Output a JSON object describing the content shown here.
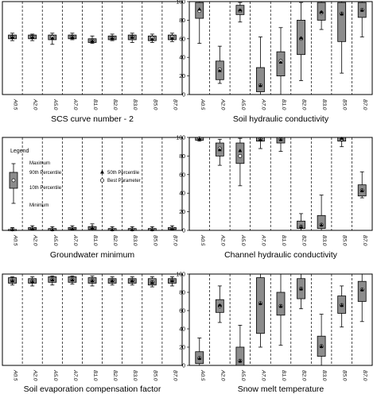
{
  "chart_data": [
    {
      "type": "box",
      "title": "SCS curve number - 2",
      "categories": [
        "A0.5",
        "A2.0",
        "A5.0",
        "A7.0",
        "B1.0",
        "B2.0",
        "B3.0",
        "B5.0",
        "B7.0"
      ],
      "ylim": [
        0,
        100
      ],
      "yticks": [],
      "grid": false,
      "series": [
        {
          "min": 58,
          "p10": 60,
          "p90": 64,
          "max": 66,
          "best": 62,
          "p50": 62
        },
        {
          "min": 58,
          "p10": 60,
          "p90": 64,
          "max": 65,
          "best": 62,
          "p50": 62
        },
        {
          "min": 54,
          "p10": 59,
          "p90": 64,
          "max": 66,
          "best": 62,
          "p50": 61
        },
        {
          "min": 59,
          "p10": 60,
          "p90": 64,
          "max": 66,
          "best": 62,
          "p50": 62
        },
        {
          "min": 55,
          "p10": 56,
          "p90": 60,
          "max": 63,
          "best": 58,
          "p50": 58
        },
        {
          "min": 58,
          "p10": 59,
          "p90": 63,
          "max": 65,
          "best": 61,
          "p50": 61
        },
        {
          "min": 56,
          "p10": 59,
          "p90": 64,
          "max": 66,
          "best": 62,
          "p50": 62
        },
        {
          "min": 56,
          "p10": 58,
          "p90": 63,
          "max": 65,
          "best": 61,
          "p50": 60
        },
        {
          "min": 57,
          "p10": 59,
          "p90": 64,
          "max": 66,
          "best": 62,
          "p50": 61
        }
      ]
    },
    {
      "type": "box",
      "title": "Soil hydraulic conductivity",
      "categories": [
        "A0.5",
        "A2.0",
        "A5.0",
        "A7.0",
        "B1.0",
        "B2.0",
        "B3.0",
        "B5.0",
        "B7.0"
      ],
      "ylim": [
        0,
        100
      ],
      "yticks": [
        "0",
        "20",
        "40",
        "60",
        "80",
        "100"
      ],
      "grid": false,
      "series": [
        {
          "min": 55,
          "p10": 82,
          "p90": 99,
          "max": 100,
          "best": 90,
          "p50": 92
        },
        {
          "min": 12,
          "p10": 16,
          "p90": 36,
          "max": 52,
          "best": 27,
          "p50": 26
        },
        {
          "min": 78,
          "p10": 86,
          "p90": 96,
          "max": 99,
          "best": 90,
          "p50": 91
        },
        {
          "min": 0,
          "p10": 3,
          "p90": 29,
          "max": 62,
          "best": 10,
          "p50": 10
        },
        {
          "min": 0,
          "p10": 20,
          "p90": 46,
          "max": 72,
          "best": 36,
          "p50": 35
        },
        {
          "min": 15,
          "p10": 43,
          "p90": 80,
          "max": 99,
          "best": 60,
          "p50": 61
        },
        {
          "min": 70,
          "p10": 80,
          "p90": 99,
          "max": 100,
          "best": 88,
          "p50": 89
        },
        {
          "min": 23,
          "p10": 57,
          "p90": 99,
          "max": 100,
          "best": 87,
          "p50": 87
        },
        {
          "min": 62,
          "p10": 83,
          "p90": 99,
          "max": 100,
          "best": 91,
          "p50": 91
        }
      ]
    },
    {
      "type": "box",
      "title": "Groundwater minimum",
      "categories": [
        "A0.5",
        "A2.0",
        "A5.0",
        "A7.0",
        "B1.0",
        "B2.0",
        "B3.0",
        "B5.0",
        "B7.0"
      ],
      "ylim": [
        0,
        100
      ],
      "yticks": [],
      "grid": false,
      "series": [
        {
          "min": 0,
          "p10": 0,
          "p90": 1,
          "max": 3,
          "best": 1,
          "p50": 1
        },
        {
          "min": 0,
          "p10": 1,
          "p90": 3,
          "max": 5,
          "best": 2,
          "p50": 2
        },
        {
          "min": 0,
          "p10": 0,
          "p90": 2,
          "max": 4,
          "best": 1,
          "p50": 1
        },
        {
          "min": 0,
          "p10": 1,
          "p90": 3,
          "max": 5,
          "best": 2,
          "p50": 2
        },
        {
          "min": 0,
          "p10": 1,
          "p90": 4,
          "max": 7,
          "best": 3,
          "p50": 3
        },
        {
          "min": 0,
          "p10": 0,
          "p90": 2,
          "max": 4,
          "best": 1,
          "p50": 1
        },
        {
          "min": 0,
          "p10": 0,
          "p90": 2,
          "max": 4,
          "best": 1,
          "p50": 1
        },
        {
          "min": 0,
          "p10": 0,
          "p90": 2,
          "max": 4,
          "best": 1,
          "p50": 1
        },
        {
          "min": 0,
          "p10": 1,
          "p90": 3,
          "max": 5,
          "best": 2,
          "p50": 2
        }
      ],
      "legend": {
        "title": "Legend",
        "items": [
          "Maximum",
          "90th Percentile",
          "10th Percentile",
          "Minimum",
          "50th Percentile",
          "Best Parameter"
        ]
      }
    },
    {
      "type": "box",
      "title": "Channel hydraulic conductivity",
      "categories": [
        "A0.5",
        "A2.0",
        "A5.0",
        "A7.0",
        "B1.0",
        "B2.0",
        "B3.0",
        "B5.0",
        "B7.0"
      ],
      "ylim": [
        0,
        100
      ],
      "yticks": [
        "0",
        "20",
        "40",
        "60",
        "80",
        "100"
      ],
      "grid": false,
      "series": [
        {
          "min": 96,
          "p10": 97,
          "p90": 100,
          "max": 100,
          "best": 99,
          "p50": 99
        },
        {
          "min": 70,
          "p10": 80,
          "p90": 94,
          "max": 98,
          "best": 88,
          "p50": 87
        },
        {
          "min": 48,
          "p10": 72,
          "p90": 94,
          "max": 99,
          "best": 80,
          "p50": 86
        },
        {
          "min": 88,
          "p10": 96,
          "p90": 100,
          "max": 100,
          "best": 98,
          "p50": 98
        },
        {
          "min": 85,
          "p10": 94,
          "p90": 100,
          "max": 100,
          "best": 98,
          "p50": 98
        },
        {
          "min": 0,
          "p10": 2,
          "p90": 10,
          "max": 18,
          "best": 4,
          "p50": 4
        },
        {
          "min": 0,
          "p10": 2,
          "p90": 16,
          "max": 38,
          "best": 6,
          "p50": 6
        },
        {
          "min": 90,
          "p10": 96,
          "p90": 100,
          "max": 100,
          "best": 98,
          "p50": 99
        },
        {
          "min": 35,
          "p10": 37,
          "p90": 49,
          "max": 63,
          "best": 43,
          "p50": 43
        }
      ]
    },
    {
      "type": "box",
      "title": "Soil evaporation compensation factor",
      "categories": [
        "A0.5",
        "A2.0",
        "A5.0",
        "A7.0",
        "B1.0",
        "B2.0",
        "B3.0",
        "B5.0",
        "B7.0"
      ],
      "ylim": [
        0,
        100
      ],
      "yticks": [],
      "grid": false,
      "series": [
        {
          "min": 88,
          "p10": 90,
          "p90": 96,
          "max": 97,
          "best": 93,
          "p50": 93
        },
        {
          "min": 87,
          "p10": 90,
          "p90": 95,
          "max": 97,
          "best": 92,
          "p50": 92
        },
        {
          "min": 88,
          "p10": 91,
          "p90": 97,
          "max": 98,
          "best": 94,
          "p50": 94
        },
        {
          "min": 89,
          "p10": 91,
          "p90": 97,
          "max": 98,
          "best": 94,
          "p50": 94
        },
        {
          "min": 87,
          "p10": 90,
          "p90": 96,
          "max": 98,
          "best": 93,
          "p50": 93
        },
        {
          "min": 88,
          "p10": 90,
          "p90": 95,
          "max": 97,
          "best": 93,
          "p50": 93
        },
        {
          "min": 88,
          "p10": 90,
          "p90": 95,
          "max": 97,
          "best": 93,
          "p50": 93
        },
        {
          "min": 86,
          "p10": 88,
          "p90": 95,
          "max": 97,
          "best": 91,
          "p50": 91
        },
        {
          "min": 87,
          "p10": 90,
          "p90": 95,
          "max": 97,
          "best": 93,
          "p50": 93
        }
      ]
    },
    {
      "type": "box",
      "title": "Snow melt temperature",
      "categories": [
        "A0.5",
        "A2.0",
        "A5.0",
        "A7.0",
        "B1.0",
        "B2.0",
        "B3.0",
        "B5.0",
        "B7.0"
      ],
      "ylim": [
        0,
        100
      ],
      "yticks": [
        "0",
        "20",
        "40",
        "60",
        "80",
        "100"
      ],
      "grid": false,
      "series": [
        {
          "min": 0,
          "p10": 2,
          "p90": 15,
          "max": 30,
          "best": 8,
          "p50": 8
        },
        {
          "min": 47,
          "p10": 58,
          "p90": 72,
          "max": 87,
          "best": 65,
          "p50": 66
        },
        {
          "min": 0,
          "p10": 0,
          "p90": 20,
          "max": 44,
          "best": 5,
          "p50": 5
        },
        {
          "min": 20,
          "p10": 35,
          "p90": 96,
          "max": 100,
          "best": 68,
          "p50": 68
        },
        {
          "min": 22,
          "p10": 55,
          "p90": 80,
          "max": 100,
          "best": 65,
          "p50": 65
        },
        {
          "min": 62,
          "p10": 73,
          "p90": 95,
          "max": 100,
          "best": 84,
          "p50": 84
        },
        {
          "min": 0,
          "p10": 10,
          "p90": 32,
          "max": 56,
          "best": 21,
          "p50": 21
        },
        {
          "min": 42,
          "p10": 57,
          "p90": 76,
          "max": 87,
          "best": 66,
          "p50": 66
        },
        {
          "min": 48,
          "p10": 70,
          "p90": 92,
          "max": 100,
          "best": 83,
          "p50": 83
        }
      ]
    }
  ]
}
